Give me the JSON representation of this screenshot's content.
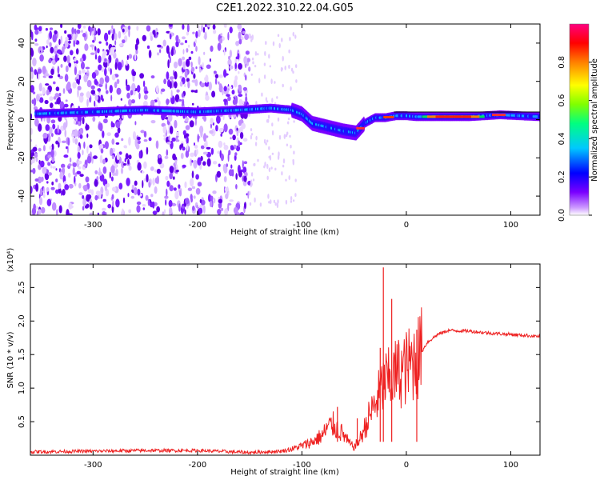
{
  "title": "C2E1.2022.310.22.04.G05",
  "chart_data": [
    {
      "type": "heatmap",
      "xlabel": "Height of straight line (km)",
      "ylabel": "Frequency (Hz)",
      "xlim": [
        -360,
        128
      ],
      "ylim": [
        -50,
        50
      ],
      "x_ticks": [
        -300,
        -200,
        -100,
        0,
        100
      ],
      "y_ticks": [
        -40,
        -20,
        0,
        20,
        40
      ],
      "colorbar": {
        "label": "Normalized spectral amplitude",
        "range": [
          0,
          1
        ],
        "ticks": [
          "0.0",
          "0.2",
          "0.4",
          "0.6",
          "0.8"
        ],
        "colors": [
          "#ffffff",
          "#cc99ff",
          "#7a00ff",
          "#0000ff",
          "#00c8ff",
          "#00ff80",
          "#80ff00",
          "#ffff00",
          "#ff8000",
          "#ff0000",
          "#ff0080"
        ]
      },
      "ridge": {
        "x": [
          -355,
          -300,
          -250,
          -200,
          -160,
          -130,
          -110,
          -100,
          -90,
          -75,
          -60,
          -48,
          -40,
          -30,
          -20,
          -10,
          0,
          10,
          30,
          60,
          90,
          128
        ],
        "frequency": [
          3,
          4,
          5,
          4,
          5,
          6,
          5,
          3,
          -2,
          -4,
          -6,
          -7,
          -2,
          1,
          1,
          2,
          2,
          1.5,
          1.5,
          1.5,
          2.5,
          1.5
        ]
      },
      "noise_region_x": [
        -360,
        -150
      ]
    },
    {
      "type": "line",
      "xlabel": "Height of straight line (km)",
      "ylabel": "SNR (10 * v/v)",
      "y_multiplier": "(x10⁴)",
      "xlim": [
        -360,
        128
      ],
      "ylim": [
        0,
        2.85
      ],
      "x_ticks": [
        -300,
        -200,
        -100,
        0,
        100
      ],
      "y_ticks": [
        0.5,
        1.0,
        1.5,
        2.0,
        2.5
      ],
      "series": [
        {
          "color": "#ee2020",
          "x": [
            -360,
            -300,
            -250,
            -200,
            -150,
            -120,
            -110,
            -100,
            -90,
            -80,
            -75,
            -70,
            -65,
            -60,
            -55,
            -50,
            -45,
            -40,
            -35,
            -30,
            -25,
            -20,
            -15,
            -10,
            -5,
            0,
            5,
            10,
            15,
            20,
            30,
            40,
            60,
            80,
            100,
            128
          ],
          "values": [
            0.05,
            0.06,
            0.07,
            0.07,
            0.04,
            0.06,
            0.09,
            0.14,
            0.2,
            0.3,
            0.42,
            0.45,
            0.38,
            0.3,
            0.18,
            0.12,
            0.22,
            0.4,
            0.6,
            0.75,
            0.95,
            1.1,
            1.12,
            1.22,
            1.25,
            1.3,
            1.38,
            1.45,
            1.55,
            1.68,
            1.8,
            1.86,
            1.85,
            1.82,
            1.8,
            1.77
          ],
          "spikes": [
            {
              "x": -66,
              "value": 0.72
            },
            {
              "x": -47,
              "value": 0.55
            },
            {
              "x": -25,
              "value": 1.6
            },
            {
              "x": -22,
              "value": 2.8
            },
            {
              "x": -14,
              "value": 2.33
            },
            {
              "x": 10,
              "value": 1.87
            }
          ]
        }
      ]
    }
  ]
}
